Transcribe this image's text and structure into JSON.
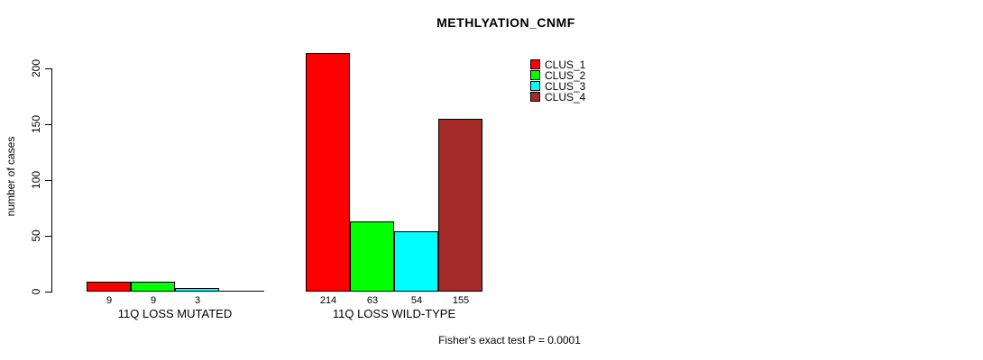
{
  "chart_data": {
    "type": "bar",
    "title": "METHLYATION_CNMF",
    "xlabel": "",
    "ylabel": "number of cases",
    "annotation": "Fisher's exact test P = 0.0001",
    "categories": [
      "11Q LOSS MUTATED",
      "11Q LOSS WILD-TYPE"
    ],
    "series": [
      {
        "name": "CLUS_1",
        "color": "#FF0000",
        "values": [
          9,
          214
        ]
      },
      {
        "name": "CLUS_2",
        "color": "#00FF00",
        "values": [
          9,
          63
        ]
      },
      {
        "name": "CLUS_3",
        "color": "#00FFFF",
        "values": [
          3,
          54
        ]
      },
      {
        "name": "CLUS_4",
        "color": "#A52A2A",
        "values": [
          0,
          155
        ]
      }
    ],
    "bar_value_labels": [
      [
        "9",
        "9",
        "3",
        ""
      ],
      [
        "214",
        "63",
        "54",
        "155"
      ]
    ],
    "ylim": [
      0,
      200
    ],
    "y_ticks": [
      0,
      50,
      100,
      150,
      200
    ],
    "grid": false,
    "legend_position": "top-right",
    "bar_border_color": "#000000",
    "background_color": "#FFFFFF"
  }
}
